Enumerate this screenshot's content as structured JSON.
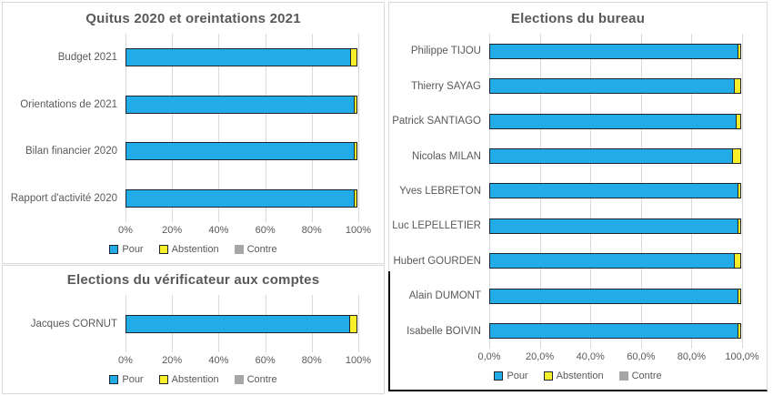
{
  "colors": {
    "pour": "#21ace8",
    "abstention": "#f7ef2a",
    "contre": "#a6a6a6",
    "segment_border": "#20262e",
    "grid": "#d9d9d9",
    "text": "#595959"
  },
  "legend": {
    "items": [
      {
        "key": "pour",
        "label": "Pour"
      },
      {
        "key": "abstention",
        "label": "Abstention"
      },
      {
        "key": "contre",
        "label": "Contre"
      }
    ]
  },
  "chart_data": [
    {
      "type": "bar",
      "orientation": "horizontal",
      "stacked": true,
      "title": "Quitus 2020 et oreintations 2021",
      "categories": [
        "Budget 2021",
        "Orientations de 2021",
        "Bilan financier 2020",
        "Rapport d'activité 2020"
      ],
      "series": [
        {
          "name": "Pour",
          "values": [
            97,
            98.5,
            98.5,
            98.5
          ]
        },
        {
          "name": "Abstention",
          "values": [
            3,
            1.5,
            1.5,
            1.5
          ]
        },
        {
          "name": "Contre",
          "values": [
            0,
            0,
            0,
            0
          ]
        }
      ],
      "xlim": [
        0,
        100
      ],
      "tick_labels": [
        "0%",
        "20%",
        "40%",
        "60%",
        "80%",
        "100%"
      ],
      "grid": true,
      "legend_position": "bottom"
    },
    {
      "type": "bar",
      "orientation": "horizontal",
      "stacked": true,
      "title": "Elections du bureau",
      "categories": [
        "Philippe TIJOU",
        "Thierry SAYAG",
        "Patrick SANTIAGO",
        "Nicolas MILAN",
        "Yves LEBRETON",
        "Luc LEPELLETIER",
        "Hubert GOURDEN",
        "Alain DUMONT",
        "Isabelle BOIVIN"
      ],
      "series": [
        {
          "name": "Pour",
          "values": [
            98.5,
            97,
            98,
            96.5,
            98.5,
            98.5,
            97,
            98.5,
            98.5
          ]
        },
        {
          "name": "Abstention",
          "values": [
            1.5,
            3,
            2,
            3.5,
            1.5,
            1.5,
            3,
            1.5,
            1.5
          ]
        },
        {
          "name": "Contre",
          "values": [
            0,
            0,
            0,
            0,
            0,
            0,
            0,
            0,
            0
          ]
        }
      ],
      "xlim": [
        0,
        100
      ],
      "tick_labels": [
        "0,0%",
        "20,0%",
        "40,0%",
        "60,0%",
        "80,0%",
        "100,0%"
      ],
      "grid": true,
      "legend_position": "bottom"
    },
    {
      "type": "bar",
      "orientation": "horizontal",
      "stacked": true,
      "title": "Elections du vérificateur aux comptes",
      "categories": [
        "Jacques CORNUT"
      ],
      "series": [
        {
          "name": "Pour",
          "values": [
            96.5
          ]
        },
        {
          "name": "Abstention",
          "values": [
            3.5
          ]
        },
        {
          "name": "Contre",
          "values": [
            0
          ]
        }
      ],
      "xlim": [
        0,
        100
      ],
      "tick_labels": [
        "0%",
        "20%",
        "40%",
        "60%",
        "80%",
        "100%"
      ],
      "grid": true,
      "legend_position": "bottom"
    }
  ]
}
